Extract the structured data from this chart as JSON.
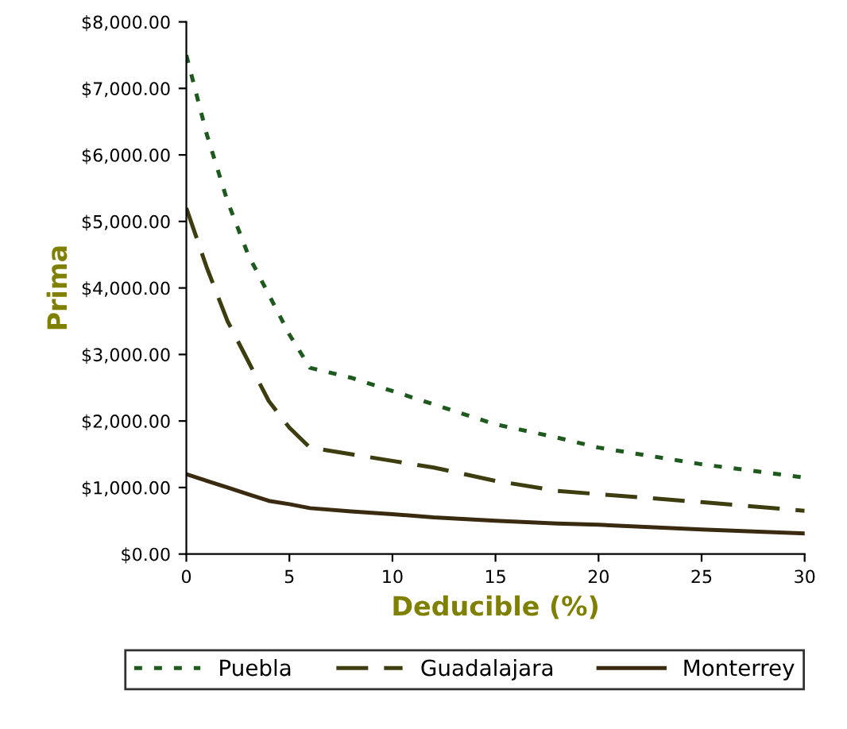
{
  "chart_data": {
    "type": "line",
    "xlabel": "Deducible (%)",
    "ylabel": "Prima",
    "xlim": [
      0,
      30
    ],
    "xticks": [
      0,
      5,
      10,
      15,
      20,
      25,
      30
    ],
    "ylim": [
      0,
      8000
    ],
    "yticks": [
      {
        "value": 0,
        "label": "$0.00"
      },
      {
        "value": 1000,
        "label": "$1,000.00"
      },
      {
        "value": 2000,
        "label": "$2,000.00"
      },
      {
        "value": 3000,
        "label": "$3,000.00"
      },
      {
        "value": 4000,
        "label": "$4,000.00"
      },
      {
        "value": 5000,
        "label": "$5,000.00"
      },
      {
        "value": 6000,
        "label": "$6,000.00"
      },
      {
        "value": 7000,
        "label": "$7,000.00"
      },
      {
        "value": 8000,
        "label": "$8,000.00"
      }
    ],
    "x": [
      0,
      1,
      2,
      3,
      4,
      5,
      6,
      8,
      10,
      12,
      15,
      18,
      20,
      25,
      30
    ],
    "grid": false,
    "legend": "bottom",
    "marker": "none",
    "series": [
      {
        "name": "Puebla",
        "color": "#1e5a1e",
        "line_style": "dotted",
        "values": [
          7500,
          6300,
          5300,
          4500,
          3900,
          3300,
          2800,
          2650,
          2450,
          2250,
          1950,
          1750,
          1600,
          1350,
          1150
        ]
      },
      {
        "name": "Guadalajara",
        "color": "#3d3d10",
        "line_style": "dashed",
        "values": [
          5200,
          4300,
          3500,
          2900,
          2300,
          1900,
          1600,
          1500,
          1400,
          1300,
          1100,
          950,
          900,
          780,
          650
        ]
      },
      {
        "name": "Monterrey",
        "color": "#3a2a10",
        "line_style": "solid",
        "values": [
          1200,
          1100,
          1000,
          900,
          800,
          750,
          690,
          640,
          600,
          550,
          500,
          460,
          440,
          370,
          310
        ]
      }
    ]
  }
}
